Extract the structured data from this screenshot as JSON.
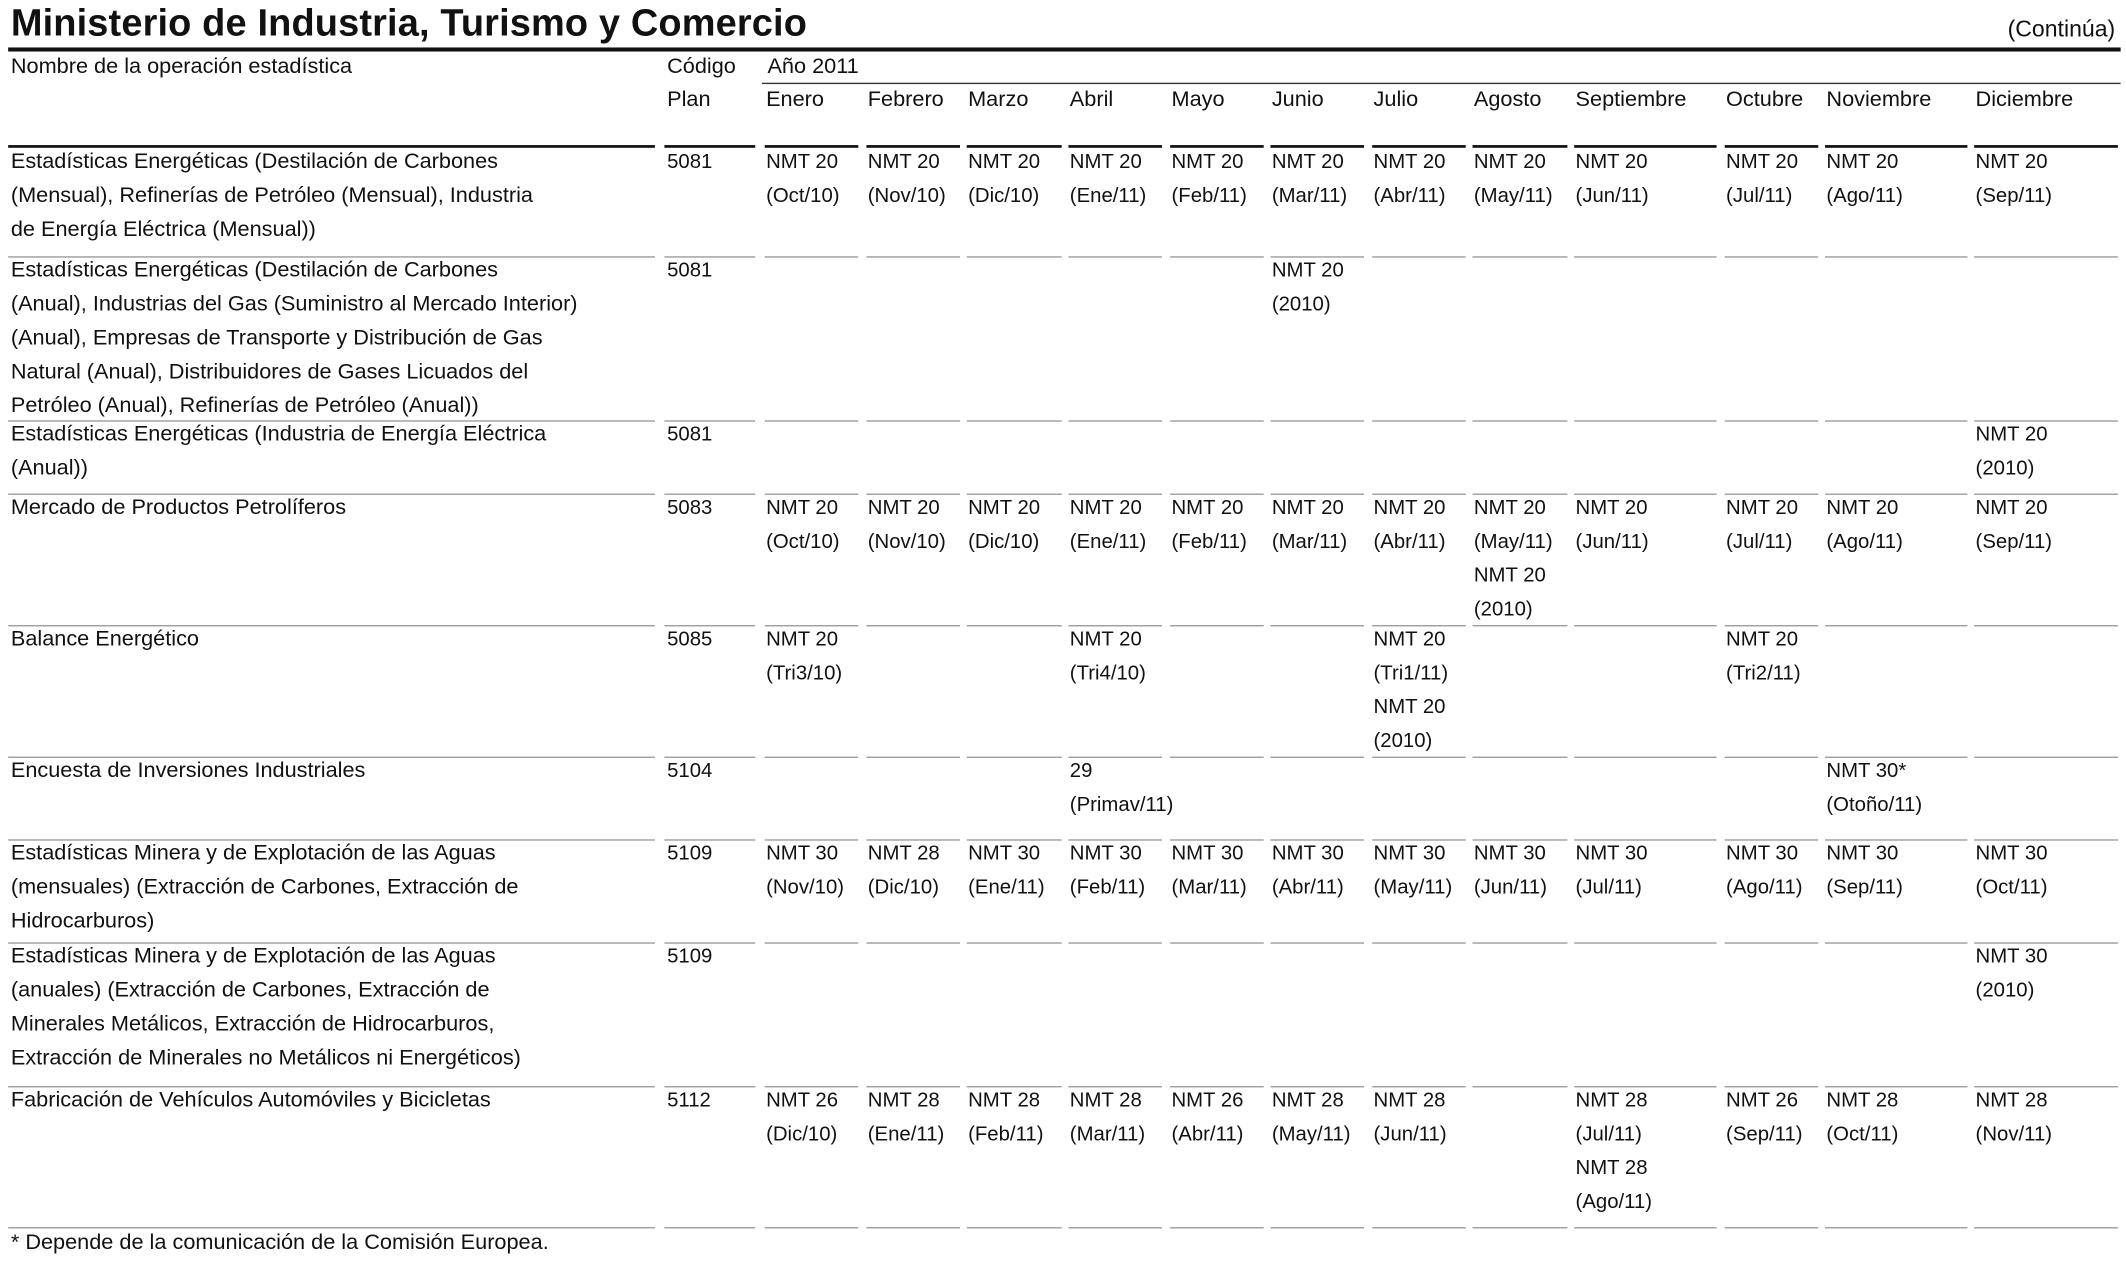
{
  "title": "Ministerio de Industria, Turismo y Comercio",
  "continua": "(Continúa)",
  "headers": {
    "name": "Nombre de la operación estadística",
    "code_line1": "Código",
    "code_line2": "Plan",
    "year": "Año 2011",
    "months": [
      "Enero",
      "Febrero",
      "Marzo",
      "Abril",
      "Mayo",
      "Junio",
      "Julio",
      "Agosto",
      "Septiembre",
      "Octubre",
      "Noviembre",
      "Diciembre"
    ]
  },
  "rows": [
    {
      "name_lines": [
        "Estadísticas Energéticas (Destilación de Carbones",
        "(Mensual), Refinerías de Petróleo (Mensual), Industria",
        "de Energía Eléctrica (Mensual))"
      ],
      "code": "5081",
      "cells": [
        [
          "NMT 20",
          "(Oct/10)"
        ],
        [
          "NMT 20",
          "(Nov/10)"
        ],
        [
          "NMT 20",
          "(Dic/10)"
        ],
        [
          "NMT 20",
          "(Ene/11)"
        ],
        [
          "NMT 20",
          "(Feb/11)"
        ],
        [
          "NMT 20",
          "(Mar/11)"
        ],
        [
          "NMT 20",
          "(Abr/11)"
        ],
        [
          "NMT 20",
          "(May/11)"
        ],
        [
          "NMT 20",
          "(Jun/11)"
        ],
        [
          "NMT 20",
          "(Jul/11)"
        ],
        [
          "NMT 20",
          "(Ago/11)"
        ],
        [
          "NMT 20",
          "(Sep/11)"
        ]
      ]
    },
    {
      "name_lines": [
        "Estadísticas Energéticas (Destilación de Carbones",
        "(Anual), Industrias del Gas (Suministro al Mercado Interior)",
        "(Anual), Empresas de Transporte y Distribución de Gas",
        "Natural (Anual), Distribuidores de Gases Licuados del",
        "Petróleo (Anual), Refinerías de Petróleo (Anual))"
      ],
      "code": "5081",
      "cells": [
        [],
        [],
        [],
        [],
        [],
        [
          "NMT 20",
          "(2010)"
        ],
        [],
        [],
        [],
        [],
        [],
        []
      ]
    },
    {
      "name_lines": [
        "Estadísticas Energéticas (Industria de Energía Eléctrica",
        "(Anual))"
      ],
      "code": "5081",
      "cells": [
        [],
        [],
        [],
        [],
        [],
        [],
        [],
        [],
        [],
        [],
        [],
        [
          "NMT 20",
          "(2010)"
        ]
      ]
    },
    {
      "name_lines": [
        "Mercado de Productos Petrolíferos"
      ],
      "code": "5083",
      "cells": [
        [
          "NMT 20",
          "(Oct/10)"
        ],
        [
          "NMT 20",
          "(Nov/10)"
        ],
        [
          "NMT 20",
          "(Dic/10)"
        ],
        [
          "NMT 20",
          "(Ene/11)"
        ],
        [
          "NMT 20",
          "(Feb/11)"
        ],
        [
          "NMT 20",
          "(Mar/11)"
        ],
        [
          "NMT 20",
          "(Abr/11)"
        ],
        [
          "NMT 20",
          "(May/11)",
          "NMT 20",
          "(2010)"
        ],
        [
          "NMT 20",
          "(Jun/11)"
        ],
        [
          "NMT 20",
          "(Jul/11)"
        ],
        [
          "NMT 20",
          "(Ago/11)"
        ],
        [
          "NMT 20",
          "(Sep/11)"
        ]
      ]
    },
    {
      "name_lines": [
        "Balance Energético"
      ],
      "code": "5085",
      "cells": [
        [
          "NMT 20",
          "(Tri3/10)"
        ],
        [],
        [],
        [
          "NMT 20",
          "(Tri4/10)"
        ],
        [],
        [],
        [
          "NMT 20",
          "(Tri1/11)",
          "NMT 20",
          "(2010)"
        ],
        [],
        [],
        [
          "NMT 20",
          "(Tri2/11)"
        ],
        [],
        []
      ]
    },
    {
      "name_lines": [
        "Encuesta de Inversiones Industriales"
      ],
      "code": "5104",
      "cells": [
        [],
        [],
        [],
        [
          "29",
          "(Primav/11)"
        ],
        [],
        [],
        [],
        [],
        [],
        [],
        [
          "NMT 30*",
          "(Otoño/11)"
        ],
        []
      ]
    },
    {
      "name_lines": [
        "Estadísticas Minera y de Explotación de las Aguas",
        "(mensuales) (Extracción de  Carbones, Extracción de",
        "Hidrocarburos)"
      ],
      "code": "5109",
      "cells": [
        [
          " NMT 30",
          "(Nov/10)"
        ],
        [
          "NMT 28",
          "(Dic/10)"
        ],
        [
          "NMT 30",
          "(Ene/11)"
        ],
        [
          "NMT 30",
          "(Feb/11)"
        ],
        [
          "NMT 30",
          "(Mar/11)"
        ],
        [
          "NMT 30",
          "(Abr/11)"
        ],
        [
          "NMT 30",
          "(May/11)"
        ],
        [
          "NMT 30",
          "(Jun/11)"
        ],
        [
          "NMT 30",
          "(Jul/11)"
        ],
        [
          "NMT 30",
          "(Ago/11)"
        ],
        [
          "NMT 30",
          "(Sep/11)"
        ],
        [
          "NMT 30",
          "(Oct/11)"
        ]
      ]
    },
    {
      "name_lines": [
        "Estadísticas Minera y de Explotación de las Aguas",
        "(anuales) (Extracción de Carbones, Extracción de",
        "Minerales  Metálicos, Extracción de Hidrocarburos,",
        "Extracción de Minerales no Metálicos ni Energéticos)"
      ],
      "code": "5109",
      "cells": [
        [],
        [],
        [],
        [],
        [],
        [],
        [],
        [],
        [],
        [],
        [],
        [
          "NMT 30",
          "(2010)"
        ]
      ]
    },
    {
      "name_lines": [
        "Fabricación de Vehículos Automóviles y Bicicletas"
      ],
      "code": "5112",
      "cells": [
        [
          "NMT 26",
          "(Dic/10)"
        ],
        [
          "NMT 28",
          "(Ene/11)"
        ],
        [
          "NMT 28",
          "(Feb/11)"
        ],
        [
          "NMT 28",
          "(Mar/11)"
        ],
        [
          "NMT 26",
          "(Abr/11)"
        ],
        [
          "NMT 28",
          "(May/11)"
        ],
        [
          "NMT 28",
          "(Jun/11)"
        ],
        [],
        [
          "NMT 28",
          "(Jul/11)",
          "NMT 28",
          "(Ago/11)"
        ],
        [
          "NMT 26",
          "(Sep/11)"
        ],
        [
          "NMT 28",
          "(Oct/11)"
        ],
        [
          "NMT 28",
          "(Nov/11)"
        ]
      ]
    }
  ],
  "footnote": "* Depende de la comunicación de la Comisión Europea."
}
